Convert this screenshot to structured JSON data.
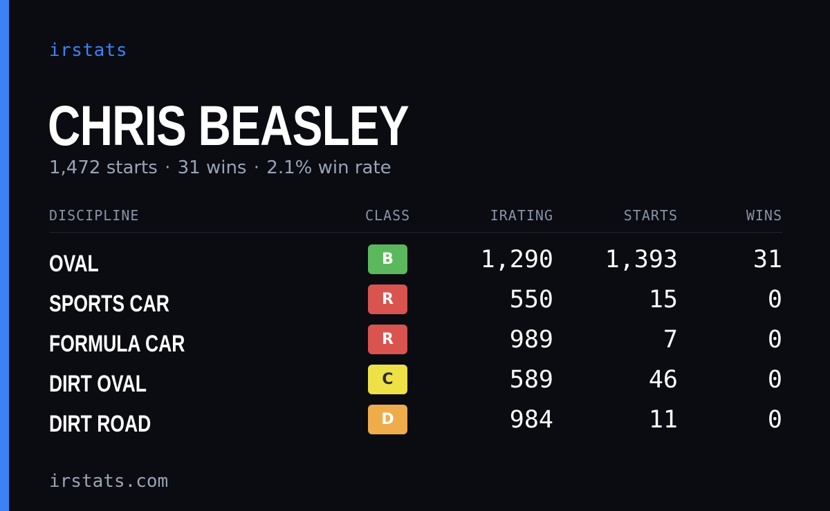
{
  "brand": "irstats",
  "driver": {
    "name": "CHRIS BEASLEY",
    "summary": {
      "starts": "1,472 starts",
      "wins": "31 wins",
      "win_rate": "2.1% win rate",
      "separator": "·"
    }
  },
  "table": {
    "headers": {
      "discipline": "DISCIPLINE",
      "class": "CLASS",
      "irating": "IRATING",
      "starts": "STARTS",
      "wins": "WINS"
    },
    "rows": [
      {
        "discipline": "OVAL",
        "class": "B",
        "class_color": "#5cb85c",
        "class_text_color": "#ffffff",
        "irating": "1,290",
        "starts": "1,393",
        "wins": "31"
      },
      {
        "discipline": "SPORTS CAR",
        "class": "R",
        "class_color": "#d9534f",
        "class_text_color": "#ffffff",
        "irating": "550",
        "starts": "15",
        "wins": "0"
      },
      {
        "discipline": "FORMULA CAR",
        "class": "R",
        "class_color": "#d9534f",
        "class_text_color": "#ffffff",
        "irating": "989",
        "starts": "7",
        "wins": "0"
      },
      {
        "discipline": "DIRT OVAL",
        "class": "C",
        "class_color": "#eee047",
        "class_text_color": "#2a2a2a",
        "irating": "589",
        "starts": "46",
        "wins": "0"
      },
      {
        "discipline": "DIRT ROAD",
        "class": "D",
        "class_color": "#efac4a",
        "class_text_color": "#ffffff",
        "irating": "984",
        "starts": "11",
        "wins": "0"
      }
    ]
  },
  "footer": "irstats.com",
  "colors": {
    "accent": "#3b82f6",
    "background": "#0a0c12",
    "muted_text": "#9ba3b4"
  }
}
